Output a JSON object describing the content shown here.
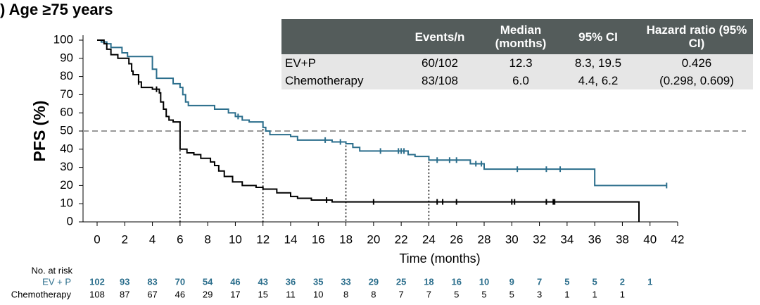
{
  "chart_data": {
    "type": "km",
    "title": ") Age ≥75 years",
    "xlabel": "Time (months)",
    "ylabel": "PFS (%)",
    "xlim": [
      0,
      42
    ],
    "ylim": [
      0,
      100
    ],
    "xticks": [
      0,
      2,
      4,
      6,
      8,
      10,
      12,
      14,
      16,
      18,
      20,
      22,
      24,
      26,
      28,
      30,
      32,
      34,
      36,
      38,
      40,
      42
    ],
    "yticks": [
      0,
      10,
      20,
      30,
      40,
      50,
      60,
      70,
      80,
      90,
      100
    ],
    "hline": 50,
    "landmarks": {
      "x": [
        6,
        12,
        18,
        24
      ],
      "y": [
        55,
        53,
        44,
        35
      ]
    },
    "series": [
      {
        "name": "EV + P",
        "color": "#2b6e8c",
        "x": [
          0,
          0.3,
          0.7,
          1,
          1.8,
          2.2,
          4,
          4.3,
          5.5,
          6,
          6.2,
          6.4,
          6.6,
          8.5,
          9.5,
          10,
          10.5,
          11,
          12,
          12.2,
          12.5,
          14,
          14.5,
          17,
          18,
          18.5,
          19,
          22.5,
          23,
          24,
          27,
          28,
          36,
          41.2
        ],
        "values": [
          100,
          99,
          98,
          96,
          93,
          91,
          84,
          79,
          76,
          74,
          70,
          66,
          64,
          62,
          60,
          58,
          56,
          55,
          52,
          50,
          48,
          47,
          45,
          44,
          43,
          41,
          39,
          37,
          36,
          34,
          32,
          29,
          20,
          20
        ],
        "censor_x": [
          10.2,
          16.5,
          17.6,
          20.5,
          21.8,
          22,
          22.2,
          24.6,
          25.5,
          26,
          27.4,
          27.8,
          30.4,
          32.5,
          33.5,
          41.2
        ],
        "at_risk": [
          102,
          93,
          83,
          70,
          54,
          46,
          43,
          36,
          35,
          33,
          29,
          25,
          18,
          16,
          10,
          9,
          7,
          5,
          5,
          2,
          1
        ]
      },
      {
        "name": "Chemotherapy",
        "color": "#000000",
        "x": [
          0,
          0.5,
          0.7,
          1,
          1.5,
          2.3,
          2.5,
          2.6,
          3,
          3.2,
          4,
          4.5,
          4.6,
          4.8,
          5,
          5.2,
          5.5,
          6,
          6.5,
          7,
          7.5,
          8.2,
          8.5,
          8.8,
          9.2,
          9.8,
          10.5,
          11.5,
          12,
          13,
          14,
          14.5,
          15.5,
          17,
          39.2,
          39.2
        ],
        "values": [
          100,
          98,
          95,
          92,
          90,
          87,
          83,
          81,
          77,
          74,
          73,
          71,
          66,
          62,
          58,
          56,
          55,
          40,
          38,
          37,
          35,
          33,
          31,
          28,
          25,
          22,
          20,
          19,
          18,
          16,
          14,
          13,
          12,
          11,
          11,
          0
        ],
        "censor_x": [
          3,
          4.3,
          16.6,
          20,
          24.6,
          25,
          26,
          30,
          30.2,
          32.5,
          33,
          33.1
        ],
        "at_risk": [
          108,
          87,
          67,
          46,
          29,
          17,
          15,
          11,
          10,
          8,
          8,
          7,
          7,
          5,
          5,
          5,
          3,
          1,
          1,
          1
        ]
      }
    ],
    "at_risk_title": "No. at risk",
    "table": {
      "header": [
        "Events/n",
        "Median (months)",
        "95% CI",
        "Hazard ratio (95% CI)"
      ],
      "rows": [
        [
          "EV+P",
          "60/102",
          "12.3",
          "8.3, 19.5",
          "0.426"
        ],
        [
          "Chemotherapy",
          "83/108",
          "6.0",
          "4.4, 6.2",
          "(0.298, 0.609)"
        ]
      ]
    }
  }
}
